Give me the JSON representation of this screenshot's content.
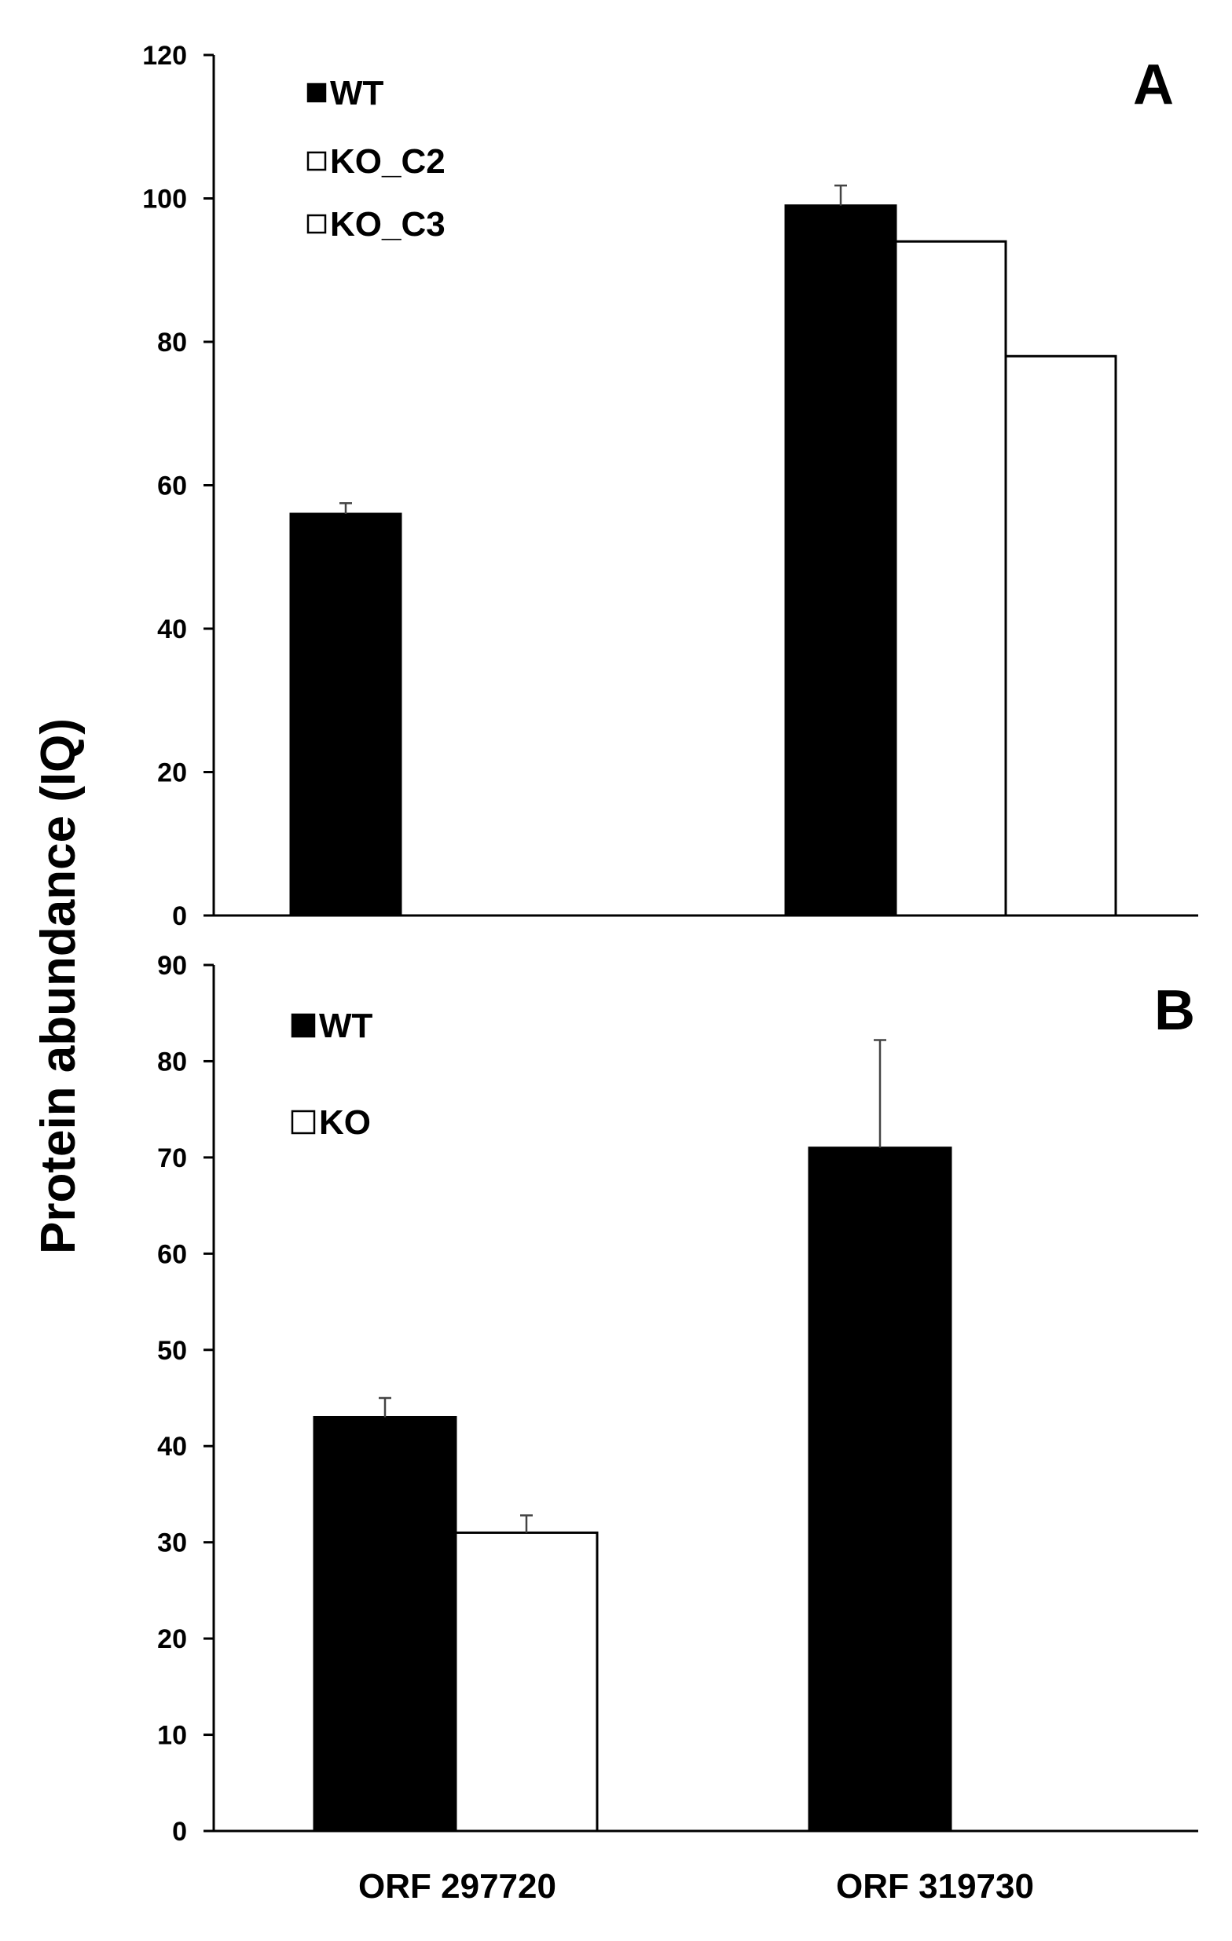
{
  "figure": {
    "ylabel": "Protein abundance (IQ)",
    "categories": [
      "ORF 297720",
      "ORF 319730"
    ]
  },
  "chart_data": [
    {
      "type": "bar",
      "panel": "A",
      "title": "",
      "xlabel": "",
      "ylabel": "Protein abundance (IQ)",
      "categories": [
        "ORF 297720",
        "ORF 319730"
      ],
      "ylim": [
        0,
        120
      ],
      "yticks": [
        0,
        20,
        40,
        60,
        80,
        100,
        120
      ],
      "grid": false,
      "legend_position": "top-left",
      "series": [
        {
          "name": "WT",
          "fill": "#000000",
          "values": [
            56,
            99
          ],
          "errors": [
            1.5,
            2.8
          ]
        },
        {
          "name": "KO_C2",
          "fill": "#ffffff",
          "values": [
            null,
            94
          ],
          "errors": [
            null,
            null
          ]
        },
        {
          "name": "KO_C3",
          "fill": "#ffffff",
          "values": [
            null,
            78
          ],
          "errors": [
            null,
            null
          ]
        }
      ]
    },
    {
      "type": "bar",
      "panel": "B",
      "title": "",
      "xlabel": "",
      "ylabel": "Protein abundance (IQ)",
      "categories": [
        "ORF 297720",
        "ORF 319730"
      ],
      "ylim": [
        0,
        90
      ],
      "yticks": [
        0,
        10,
        20,
        30,
        40,
        50,
        60,
        70,
        80,
        90
      ],
      "grid": false,
      "legend_position": "top-left",
      "series": [
        {
          "name": "WT",
          "fill": "#000000",
          "values": [
            43,
            71
          ],
          "errors": [
            2,
            11.2
          ]
        },
        {
          "name": "KO",
          "fill": "#ffffff",
          "values": [
            31,
            null
          ],
          "errors": [
            1.8,
            null
          ]
        }
      ]
    }
  ]
}
